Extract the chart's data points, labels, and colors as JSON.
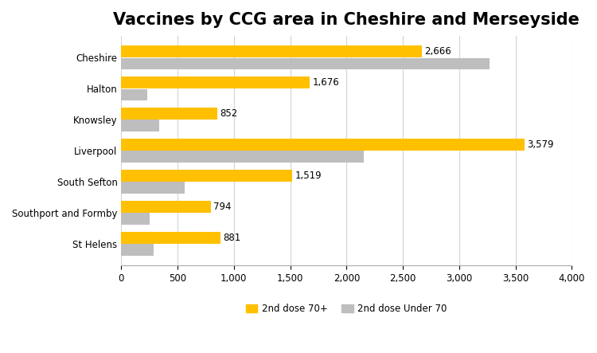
{
  "title": "Vaccines by CCG area in Cheshire and Merseyside",
  "categories": [
    "St Helens",
    "Southport and Formby",
    "South Sefton",
    "Liverpool",
    "Knowsley",
    "Halton",
    "Cheshire"
  ],
  "dose_70plus": [
    881,
    794,
    1519,
    3579,
    852,
    1676,
    2666
  ],
  "dose_under70": [
    290,
    250,
    560,
    2150,
    340,
    230,
    3270
  ],
  "color_70plus": "#FFC000",
  "color_under70": "#BEBEBE",
  "xlim": [
    0,
    4000
  ],
  "xticks": [
    0,
    500,
    1000,
    1500,
    2000,
    2500,
    3000,
    3500,
    4000
  ],
  "xtick_labels": [
    "0",
    "500",
    "1,000",
    "1,500",
    "2,000",
    "2,500",
    "3,000",
    "3,500",
    "4,000"
  ],
  "legend_labels": [
    "2nd dose 70+",
    "2nd dose Under 70"
  ],
  "title_fontsize": 15,
  "label_fontsize": 8.5,
  "tick_fontsize": 8.5,
  "ytick_fontsize": 8.5,
  "bar_height": 0.38,
  "bar_gap": 0.02,
  "background_color": "#FFFFFF",
  "grid_color": "#D3D3D3"
}
